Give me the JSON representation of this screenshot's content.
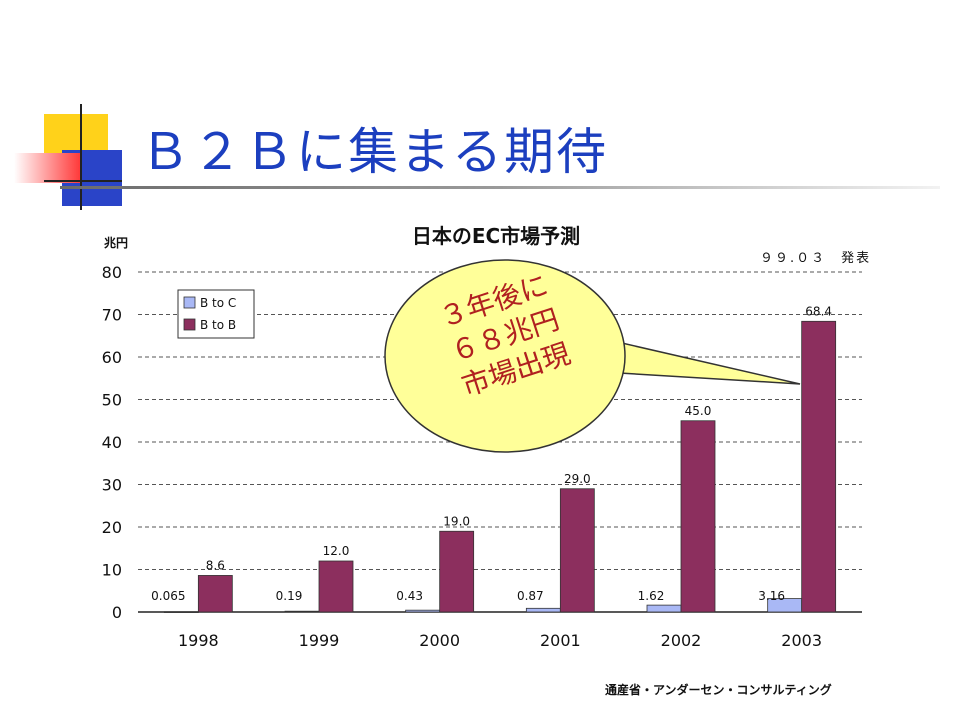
{
  "slide": {
    "title": "Ｂ２Ｂに集まる期待",
    "release_note": "９９.０３　発表",
    "source": "通産省・アンダーセン・コンサルティング"
  },
  "callout": {
    "lines": [
      "３年後に",
      "６８兆円",
      "市場出現"
    ],
    "fill": "#ffff99",
    "text_color": "#b02020"
  },
  "colors": {
    "title": "#1c3fbf",
    "b_to_c": "#a9b8f5",
    "b_to_b": "#8c2f5e"
  },
  "chart_data": {
    "type": "bar",
    "title": "日本のEC市場予測",
    "ylabel": "兆円",
    "xlabel": "",
    "categories": [
      "1998",
      "1999",
      "2000",
      "2001",
      "2002",
      "2003"
    ],
    "ylim": [
      0,
      80
    ],
    "yticks": [
      0,
      10,
      20,
      30,
      40,
      50,
      60,
      70,
      80
    ],
    "grid": true,
    "legend_position": "top-left",
    "series": [
      {
        "name": "B to C",
        "values": [
          0.065,
          0.19,
          0.43,
          0.87,
          1.62,
          3.16
        ],
        "labels": [
          "0.065",
          "0.19",
          "0.43",
          "0.87",
          "1.62",
          "3.16"
        ]
      },
      {
        "name": "B to B",
        "values": [
          8.6,
          12.0,
          19.0,
          29.0,
          45.0,
          68.4
        ],
        "labels": [
          "8.6",
          "12.0",
          "19.0",
          "29.0",
          "45.0",
          "68.4"
        ]
      }
    ]
  }
}
